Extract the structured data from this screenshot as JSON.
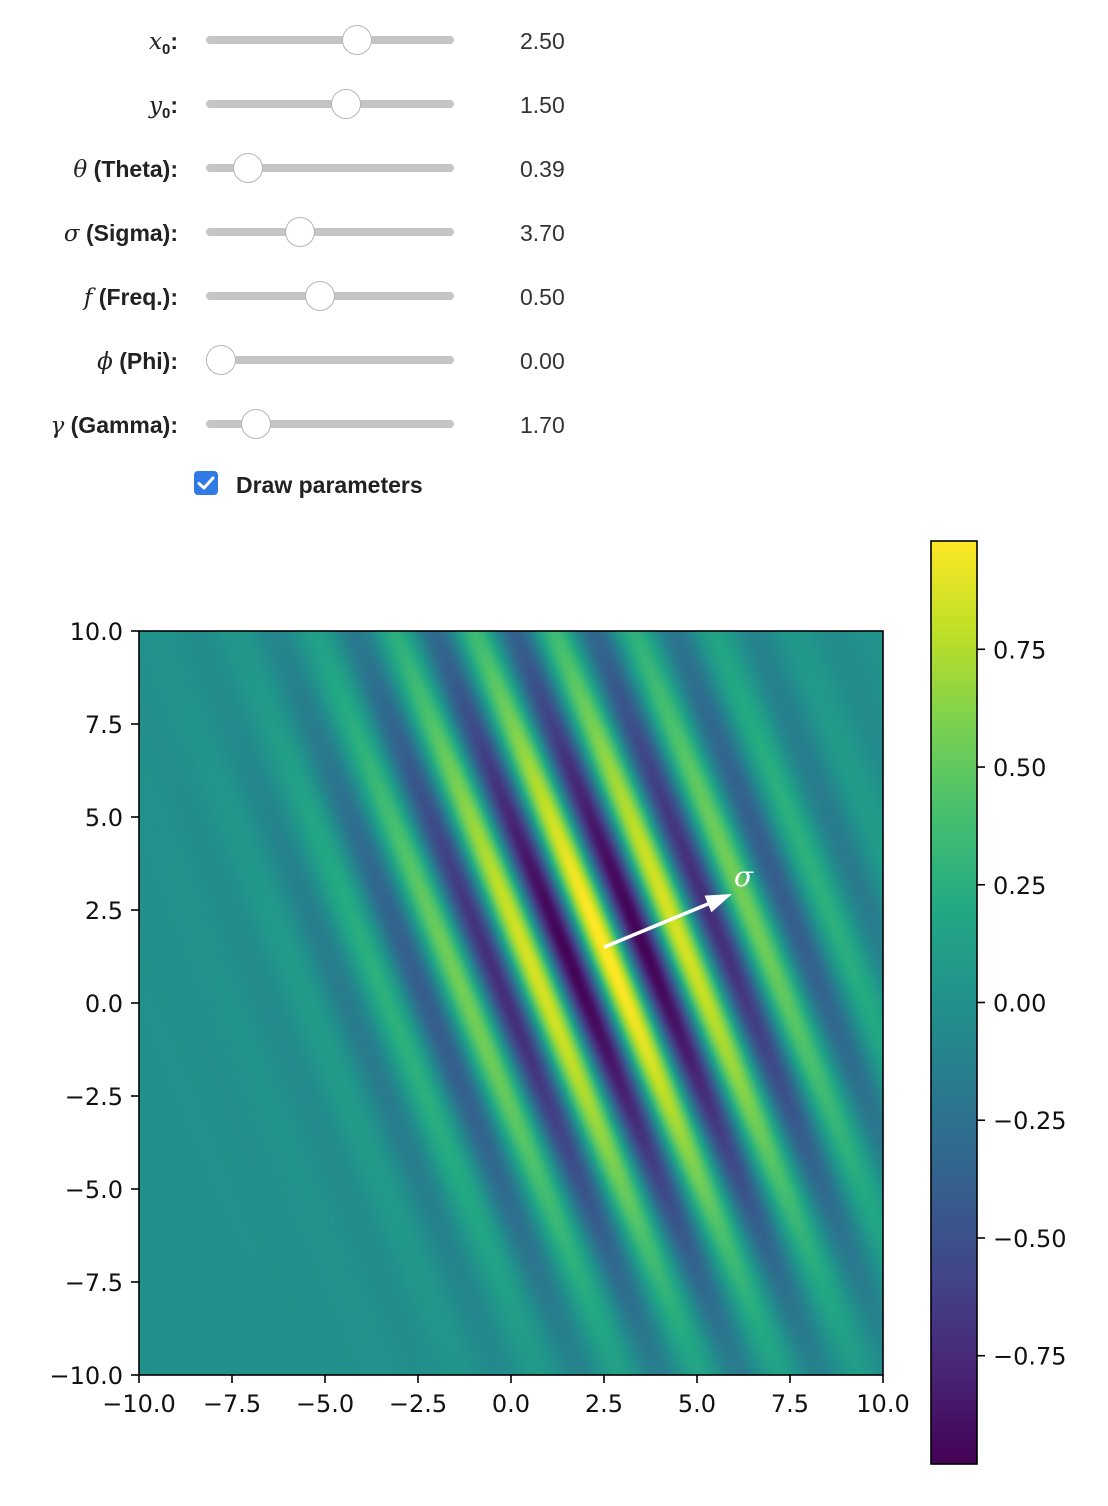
{
  "controls": {
    "sliders": [
      {
        "id": "x0",
        "symbol": "x",
        "sub": "0",
        "text": ":",
        "value": 2.5,
        "display": "2.50",
        "min": -10,
        "max": 10
      },
      {
        "id": "y0",
        "symbol": "y",
        "sub": "0",
        "text": ":",
        "value": 1.5,
        "display": "1.50",
        "min": -10,
        "max": 10
      },
      {
        "id": "theta",
        "symbol": "θ",
        "sub": "",
        "text": " (Theta):",
        "value": 0.39,
        "display": "0.39",
        "min": 0,
        "max": 3.14
      },
      {
        "id": "sigma",
        "symbol": "σ",
        "sub": "",
        "text": " (Sigma):",
        "value": 3.7,
        "display": "3.70",
        "min": 0.1,
        "max": 10
      },
      {
        "id": "freq",
        "symbol": "f",
        "sub": "",
        "text": " (Freq.):",
        "value": 0.5,
        "display": "0.50",
        "min": 0,
        "max": 1.1
      },
      {
        "id": "phi",
        "symbol": "ϕ",
        "sub": "",
        "text": " (Phi):",
        "value": 0.0,
        "display": "0.00",
        "min": 0,
        "max": 6.28
      },
      {
        "id": "gamma",
        "symbol": "γ",
        "sub": "",
        "text": " (Gamma):",
        "value": 1.7,
        "display": "1.70",
        "min": 0.5,
        "max": 8
      }
    ],
    "draw_parameters": {
      "label": "Draw parameters",
      "checked": true
    }
  },
  "chart_data": {
    "type": "heatmap",
    "function": "gabor",
    "params": {
      "x0": 2.5,
      "y0": 1.5,
      "theta": 0.39,
      "sigma": 3.7,
      "freq": 0.5,
      "phi": 0.0,
      "gamma": 1.7
    },
    "xlim": [
      -10,
      10
    ],
    "ylim": [
      -10,
      10
    ],
    "xticks": [
      "−10.0",
      "−7.5",
      "−5.0",
      "−2.5",
      "0.0",
      "2.5",
      "5.0",
      "7.5",
      "10.0"
    ],
    "xtick_values": [
      -10,
      -7.5,
      -5,
      -2.5,
      0,
      2.5,
      5,
      7.5,
      10
    ],
    "yticks": [
      "10.0",
      "7.5",
      "5.0",
      "2.5",
      "0.0",
      "−2.5",
      "−5.0",
      "−7.5",
      "−10.0"
    ],
    "ytick_values": [
      10,
      7.5,
      5,
      2.5,
      0,
      -2.5,
      -5,
      -7.5,
      -10
    ],
    "colorbar": {
      "colormap": "viridis",
      "range": [
        -0.98,
        0.98
      ],
      "ticks": [
        "0.75",
        "0.50",
        "0.25",
        "0.00",
        "−0.25",
        "−0.50",
        "−0.75"
      ],
      "tick_values": [
        0.75,
        0.5,
        0.25,
        0.0,
        -0.25,
        -0.5,
        -0.75
      ]
    },
    "annotation": {
      "label": "σ",
      "arrow_from": [
        2.5,
        1.5
      ],
      "arrow_to": [
        5.94,
        2.93
      ],
      "color": "#ffffff"
    }
  }
}
